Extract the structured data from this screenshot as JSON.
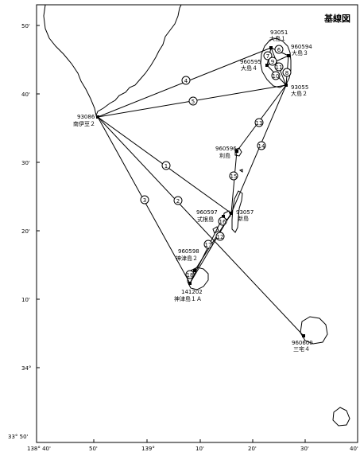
{
  "map": {
    "title": "基線図",
    "lat_labels": [
      "50'",
      "40'",
      "30'",
      "20'",
      "10'",
      "34°",
      "33° 50'"
    ],
    "lon_labels": [
      "138° 40'",
      "50'",
      "139°",
      "10'",
      "20'",
      "30'",
      "40'"
    ]
  },
  "stations": [
    {
      "id": "93051",
      "name": "大島１"
    },
    {
      "id": "960594",
      "name": "大島３"
    },
    {
      "id": "960595",
      "name": "大島４"
    },
    {
      "id": "93055",
      "name": "大島２"
    },
    {
      "id": "93086",
      "name": "南伊豆２"
    },
    {
      "id": "960596",
      "name": "利島"
    },
    {
      "id": "960597",
      "name": "式根島"
    },
    {
      "id": "93057",
      "name": "新島"
    },
    {
      "id": "960598",
      "name": "神津島２"
    },
    {
      "id": "141202",
      "name": "神津島１Ａ"
    },
    {
      "id": "960600",
      "name": "三宅４"
    }
  ],
  "baseline_numbers": [
    "1",
    "2",
    "3",
    "4",
    "5",
    "6",
    "7",
    "8",
    "9",
    "10",
    "11",
    "12",
    "13",
    "14",
    "15",
    "16",
    "17",
    "18"
  ]
}
